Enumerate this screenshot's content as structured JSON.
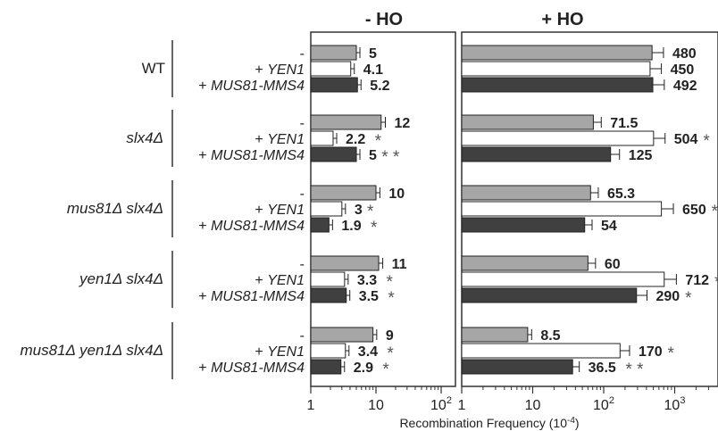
{
  "chart_data": {
    "type": "bar",
    "orientation": "horizontal",
    "xscale": "log",
    "xlabel": "Recombination Frequency (10",
    "xlabel_exp": "-4",
    "panels": [
      {
        "title": "- HO",
        "xlim": [
          1,
          100
        ],
        "ticks": [
          {
            "value": 1,
            "label": "1"
          },
          {
            "value": 10,
            "label": "10"
          },
          {
            "value": 100,
            "label": "10",
            "sup": "2"
          }
        ],
        "groups": [
          {
            "name": "WT",
            "italic": false,
            "values": [
              5,
              4.1,
              5.2
            ],
            "labels": [
              "5",
              "4.1",
              "5.2"
            ],
            "sig": [
              "",
              "",
              ""
            ]
          },
          {
            "name": "slx4Δ",
            "italic": true,
            "values": [
              12,
              2.2,
              5
            ],
            "labels": [
              "12",
              "2.2",
              "5"
            ],
            "sig": [
              "",
              "*",
              "* *"
            ]
          },
          {
            "name": "mus81Δ slx4Δ",
            "italic": true,
            "values": [
              10,
              3,
              1.9
            ],
            "labels": [
              "10",
              "3",
              "1.9"
            ],
            "sig": [
              "",
              "*",
              "*"
            ]
          },
          {
            "name": "yen1Δ slx4Δ",
            "italic": true,
            "values": [
              11,
              3.3,
              3.5
            ],
            "labels": [
              "11",
              "3.3",
              "3.5"
            ],
            "sig": [
              "",
              "*",
              "*"
            ]
          },
          {
            "name": "mus81Δ yen1Δ slx4Δ",
            "italic": true,
            "values": [
              9,
              3.4,
              2.9
            ],
            "labels": [
              "9",
              "3.4",
              "2.9"
            ],
            "sig": [
              "",
              "*",
              "*"
            ]
          }
        ]
      },
      {
        "title": "+ HO",
        "xlim": [
          1,
          5000
        ],
        "ticks": [
          {
            "value": 1,
            "label": "1"
          },
          {
            "value": 10,
            "label": "10"
          },
          {
            "value": 100,
            "label": "10",
            "sup": "2"
          },
          {
            "value": 1000,
            "label": "10",
            "sup": "3"
          }
        ],
        "groups": [
          {
            "name": "WT",
            "values": [
              480,
              450,
              492
            ],
            "labels": [
              "480",
              "450",
              "492"
            ],
            "sig": [
              "",
              "",
              ""
            ]
          },
          {
            "name": "slx4Δ",
            "values": [
              71.5,
              504,
              125
            ],
            "labels": [
              "71.5",
              "504",
              "125"
            ],
            "sig": [
              "",
              "*",
              ""
            ]
          },
          {
            "name": "mus81Δ slx4Δ",
            "values": [
              65.3,
              650,
              54
            ],
            "labels": [
              "65.3",
              "650",
              "54"
            ],
            "sig": [
              "",
              "*",
              ""
            ]
          },
          {
            "name": "yen1Δ slx4Δ",
            "values": [
              60,
              712,
              290
            ],
            "labels": [
              "60",
              "712",
              "290"
            ],
            "sig": [
              "",
              "*",
              "*"
            ]
          },
          {
            "name": "mus81Δ yen1Δ slx4Δ",
            "values": [
              8.5,
              170,
              36.5
            ],
            "labels": [
              "8.5",
              "170",
              "36.5"
            ],
            "sig": [
              "",
              "*",
              "* *"
            ]
          }
        ]
      }
    ],
    "conditions": [
      "-",
      "+ YEN1",
      "+ MUS81-MMS4"
    ],
    "condition_italic": [
      "",
      "YEN1",
      "MUS81-MMS4"
    ],
    "colors": [
      "#a6a6a6",
      "#ffffff",
      "#404040"
    ]
  }
}
